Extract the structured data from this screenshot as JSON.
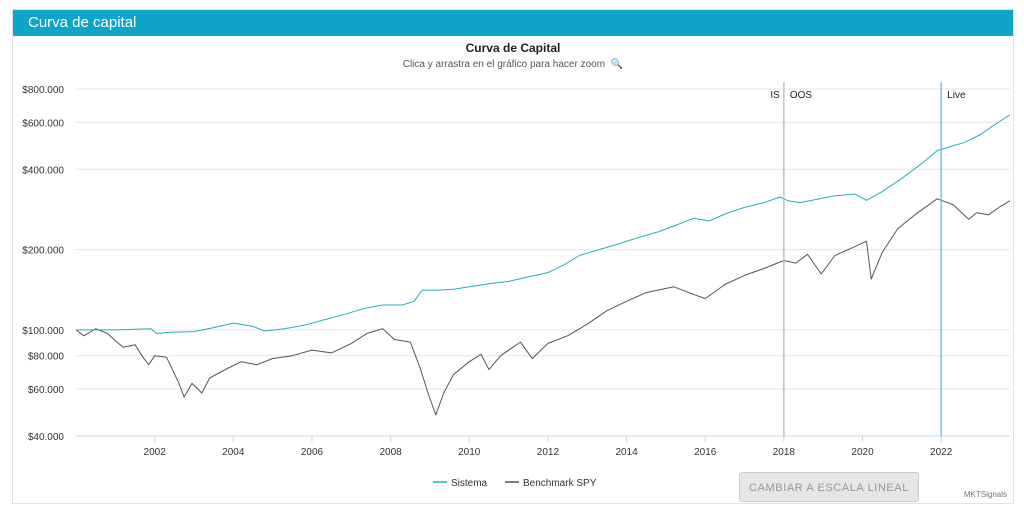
{
  "header": {
    "title": "Curva de capital"
  },
  "chart_data": {
    "type": "line",
    "title": "Curva de Capital",
    "subtitle": "Clica y arrastra en el gráfico para hacer zoom",
    "y_scale": "log",
    "ylim": [
      40000,
      850000
    ],
    "xlim": [
      2000.0,
      2023.75
    ],
    "x_ticks": [
      2002,
      2004,
      2006,
      2008,
      2010,
      2012,
      2014,
      2016,
      2018,
      2020,
      2022
    ],
    "y_ticks": [
      {
        "value": 800000,
        "label": "$800.000"
      },
      {
        "value": 600000,
        "label": "$600.000"
      },
      {
        "value": 400000,
        "label": "$400.000"
      },
      {
        "value": 200000,
        "label": "$200.000"
      },
      {
        "value": 100000,
        "label": "$100.000"
      },
      {
        "value": 80000,
        "label": "$80.000"
      },
      {
        "value": 60000,
        "label": "$60.000"
      },
      {
        "value": 40000,
        "label": "$40.000"
      }
    ],
    "vlines": [
      {
        "x": 2018.0,
        "label_left": "IS",
        "label_right": "OOS",
        "color": "#c0c0c0"
      },
      {
        "x": 2022.0,
        "label_right": "Live",
        "color": "#6ec6e8"
      }
    ],
    "series": [
      {
        "name": "Sistema",
        "color": "#22b0bb",
        "points": [
          [
            2000.0,
            100000
          ],
          [
            2001.0,
            100000
          ],
          [
            2001.9,
            101000
          ],
          [
            2002.05,
            97000
          ],
          [
            2002.4,
            98000
          ],
          [
            2003.0,
            98500
          ],
          [
            2003.5,
            102000
          ],
          [
            2004.0,
            106000
          ],
          [
            2004.5,
            103000
          ],
          [
            2004.8,
            99000
          ],
          [
            2005.3,
            101000
          ],
          [
            2005.8,
            104000
          ],
          [
            2006.2,
            108000
          ],
          [
            2006.8,
            114000
          ],
          [
            2007.3,
            120000
          ],
          [
            2007.8,
            124000
          ],
          [
            2008.3,
            124000
          ],
          [
            2008.6,
            128000
          ],
          [
            2008.8,
            141000
          ],
          [
            2009.2,
            141000
          ],
          [
            2009.6,
            142000
          ],
          [
            2010.0,
            145000
          ],
          [
            2010.5,
            149000
          ],
          [
            2011.0,
            152000
          ],
          [
            2011.5,
            158000
          ],
          [
            2012.0,
            164000
          ],
          [
            2012.4,
            175000
          ],
          [
            2012.8,
            190000
          ],
          [
            2013.3,
            200000
          ],
          [
            2013.8,
            210000
          ],
          [
            2014.3,
            222000
          ],
          [
            2014.8,
            233000
          ],
          [
            2015.2,
            245000
          ],
          [
            2015.7,
            262000
          ],
          [
            2016.1,
            256000
          ],
          [
            2016.5,
            272000
          ],
          [
            2017.0,
            288000
          ],
          [
            2017.5,
            300000
          ],
          [
            2017.9,
            315000
          ],
          [
            2018.1,
            305000
          ],
          [
            2018.4,
            300000
          ],
          [
            2018.8,
            308000
          ],
          [
            2019.3,
            318000
          ],
          [
            2019.8,
            323000
          ],
          [
            2020.1,
            306000
          ],
          [
            2020.5,
            330000
          ],
          [
            2021.0,
            370000
          ],
          [
            2021.5,
            420000
          ],
          [
            2021.9,
            470000
          ],
          [
            2022.2,
            485000
          ],
          [
            2022.6,
            505000
          ],
          [
            2023.0,
            540000
          ],
          [
            2023.3,
            580000
          ],
          [
            2023.6,
            620000
          ],
          [
            2023.75,
            640000
          ]
        ]
      },
      {
        "name": "Benchmark SPY",
        "color": "#555555",
        "points": [
          [
            2000.0,
            100000
          ],
          [
            2000.2,
            95000
          ],
          [
            2000.5,
            101000
          ],
          [
            2000.8,
            97000
          ],
          [
            2001.0,
            91000
          ],
          [
            2001.2,
            86000
          ],
          [
            2001.5,
            88000
          ],
          [
            2001.7,
            79000
          ],
          [
            2001.85,
            74000
          ],
          [
            2002.0,
            80000
          ],
          [
            2002.3,
            79000
          ],
          [
            2002.6,
            64000
          ],
          [
            2002.75,
            56000
          ],
          [
            2002.95,
            63000
          ],
          [
            2003.2,
            58000
          ],
          [
            2003.4,
            66000
          ],
          [
            2003.8,
            71000
          ],
          [
            2004.2,
            76000
          ],
          [
            2004.6,
            74000
          ],
          [
            2005.0,
            78000
          ],
          [
            2005.5,
            80000
          ],
          [
            2006.0,
            84000
          ],
          [
            2006.5,
            82000
          ],
          [
            2007.0,
            89000
          ],
          [
            2007.4,
            97000
          ],
          [
            2007.8,
            101000
          ],
          [
            2008.1,
            92000
          ],
          [
            2008.5,
            90000
          ],
          [
            2008.75,
            72000
          ],
          [
            2008.95,
            58000
          ],
          [
            2009.15,
            48000
          ],
          [
            2009.35,
            58000
          ],
          [
            2009.6,
            68000
          ],
          [
            2010.0,
            76000
          ],
          [
            2010.3,
            81000
          ],
          [
            2010.5,
            71000
          ],
          [
            2010.8,
            80000
          ],
          [
            2011.3,
            90000
          ],
          [
            2011.6,
            78000
          ],
          [
            2012.0,
            89000
          ],
          [
            2012.5,
            95000
          ],
          [
            2013.0,
            105000
          ],
          [
            2013.5,
            118000
          ],
          [
            2014.0,
            128000
          ],
          [
            2014.5,
            138000
          ],
          [
            2015.2,
            145000
          ],
          [
            2015.7,
            136000
          ],
          [
            2016.0,
            131000
          ],
          [
            2016.5,
            148000
          ],
          [
            2017.0,
            160000
          ],
          [
            2017.5,
            170000
          ],
          [
            2018.0,
            182000
          ],
          [
            2018.3,
            178000
          ],
          [
            2018.6,
            192000
          ],
          [
            2018.95,
            162000
          ],
          [
            2019.3,
            190000
          ],
          [
            2019.8,
            205000
          ],
          [
            2020.1,
            215000
          ],
          [
            2020.22,
            155000
          ],
          [
            2020.5,
            195000
          ],
          [
            2020.9,
            240000
          ],
          [
            2021.4,
            275000
          ],
          [
            2021.9,
            310000
          ],
          [
            2022.3,
            295000
          ],
          [
            2022.7,
            260000
          ],
          [
            2022.9,
            275000
          ],
          [
            2023.2,
            270000
          ],
          [
            2023.5,
            290000
          ],
          [
            2023.75,
            305000
          ]
        ]
      }
    ],
    "legend_position": "bottom-center"
  },
  "button": {
    "label": "CAMBIAR A ESCALA LINEAL"
  },
  "credit": "MKTSignals"
}
